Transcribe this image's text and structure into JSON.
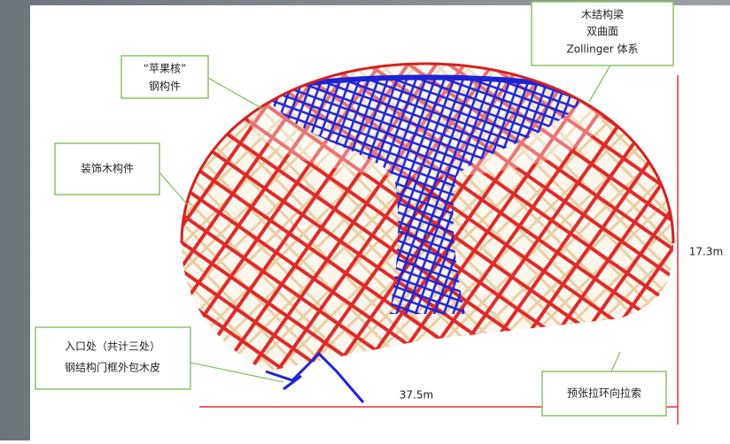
{
  "labels": {
    "top_right": [
      "木结构梁",
      "双曲面",
      "Zollinger 体系"
    ],
    "apple_core": [
      "“苹果核”",
      "钢构件"
    ],
    "decor": [
      "装饰木构件"
    ],
    "entrance": [
      "入口处（共计三处）",
      "钢结构门框外包木皮"
    ],
    "cable": [
      "预张拉环向拉索"
    ]
  },
  "dimensions": {
    "height": "17.3m",
    "width": "37.5m"
  }
}
